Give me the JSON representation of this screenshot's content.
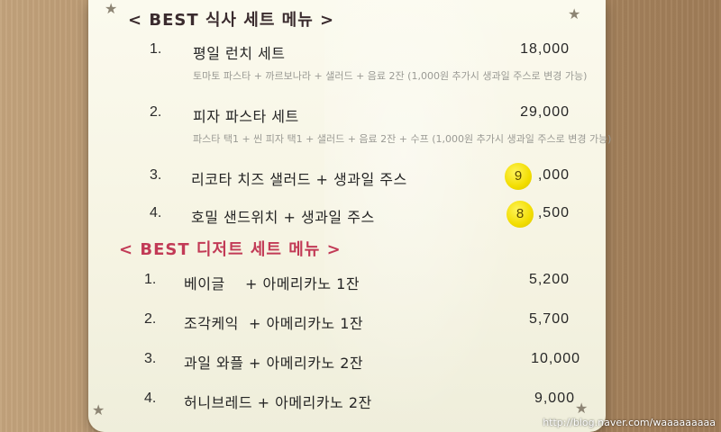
{
  "sections": [
    {
      "title": "< BEST 식사 세트 메뉴 >",
      "items": [
        {
          "num": "1.",
          "name": "평일 런치 세트",
          "price": "18,000",
          "desc": "토마토 파스타 + 까르보나라 + 샐러드 + 음료 2잔 (1,000원 추가시 생과일 주스로 변경 가능)"
        },
        {
          "num": "2.",
          "name": "피자 파스타 세트",
          "price": "29,000",
          "desc": "파스타 택1 + 씬 피자 택1 + 샐러드 + 음료 2잔 + 수프 (1,000원 추가시 생과일 주스로 변경 가능)"
        },
        {
          "num": "3.",
          "name": "리코타 치즈 샐러드 + 생과일 주스",
          "price_sticker": "9",
          "price_rest": ",000"
        },
        {
          "num": "4.",
          "name": "호밀 샌드위치 + 생과일 주스",
          "price_sticker": "8",
          "price_rest": ",500"
        }
      ]
    },
    {
      "title": "< BEST 디저트 세트 메뉴 >",
      "items": [
        {
          "num": "1.",
          "name": "베이글    + 아메리카노 1잔",
          "price": "5,200"
        },
        {
          "num": "2.",
          "name": "조각케익  + 아메리카노 1잔",
          "price": "5,700"
        },
        {
          "num": "3.",
          "name": "과일 와플 + 아메리카노 2잔",
          "price": "10,000"
        },
        {
          "num": "4.",
          "name": "허니브레드 + 아메리카노 2잔",
          "price": "9,000"
        }
      ]
    }
  ],
  "watermark": "http://blog.naver.com/waaaaaaaaa",
  "decor": {
    "star": "★"
  }
}
